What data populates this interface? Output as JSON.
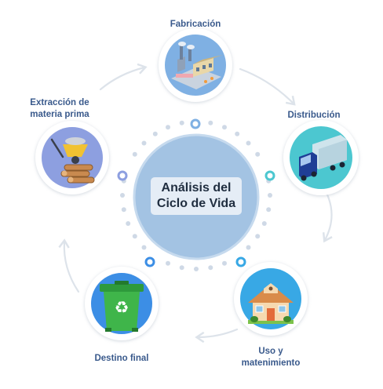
{
  "title": {
    "line1": "Análisis del",
    "line2": "Ciclo de Vida"
  },
  "stages": [
    {
      "label1": "Fabricación",
      "label2": "",
      "icon": "factory-icon",
      "color": "#7fb0e3"
    },
    {
      "label1": "Distribución",
      "label2": "",
      "icon": "truck-icon",
      "color": "#4cc7d0"
    },
    {
      "label1": "Uso y",
      "label2": "matenimiento",
      "icon": "house-icon",
      "color": "#38a8e5"
    },
    {
      "label1": "Destino final",
      "label2": "",
      "icon": "recycling-bin-icon",
      "color": "#3c8ee5"
    },
    {
      "label1": "Extracción de",
      "label2": "materia prima",
      "icon": "wheelbarrow-logs-icon",
      "color": "#8d9fe0"
    }
  ],
  "colors": {
    "label_text": "#3a5a8c",
    "center_circle": "#a3c3e3",
    "dots": "#cfd9e6",
    "arrows": "#dde3ea"
  }
}
